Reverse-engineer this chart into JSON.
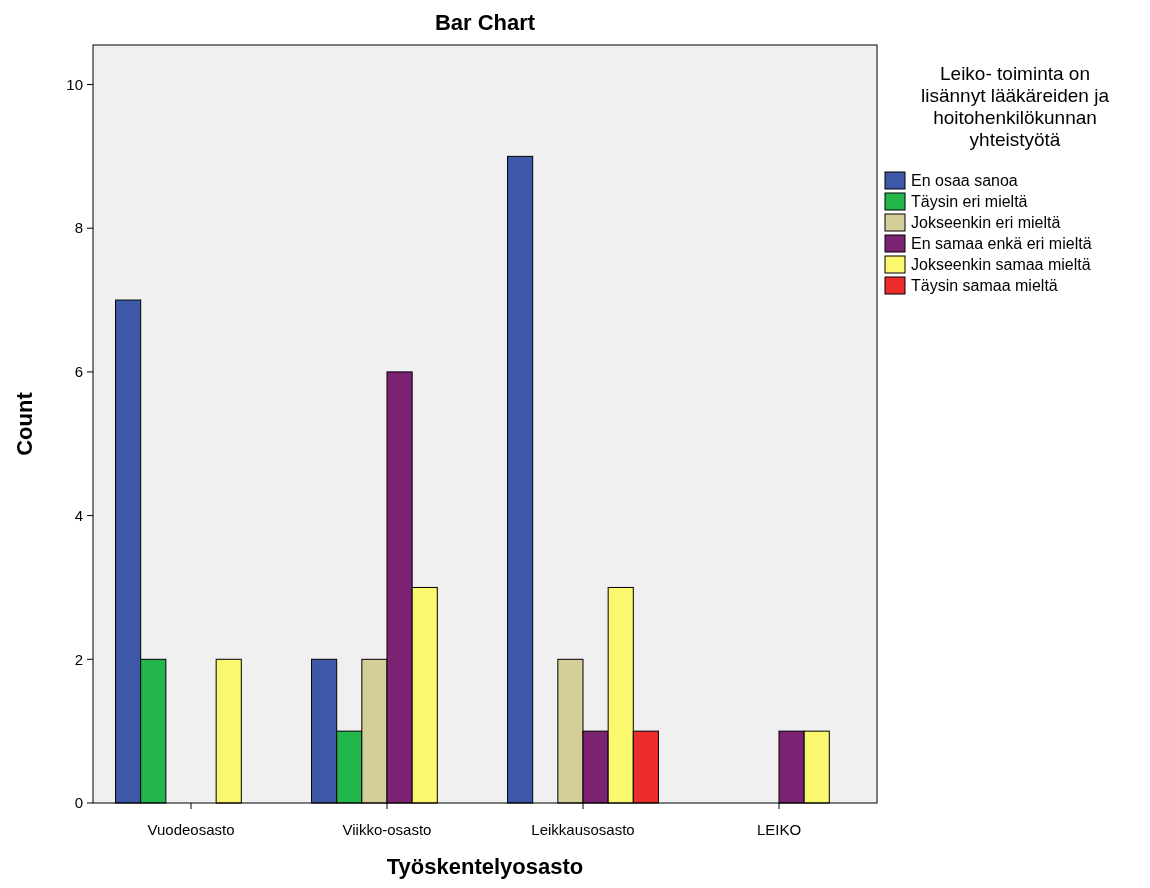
{
  "chart_data": {
    "type": "bar",
    "title": "Bar Chart",
    "xlabel": "Työskentelyosasto",
    "ylabel": "Count",
    "legend_title": "Leiko- toiminta on lisännyt lääkäreiden ja hoitohenkilökunnan yhteistyötä",
    "categories": [
      "Vuodeosasto",
      "Viikko-osasto",
      "Leikkausosasto",
      "LEIKO"
    ],
    "series": [
      {
        "name": "En osaa sanoa",
        "color": "#3d57a9",
        "values": [
          7,
          2,
          9,
          null
        ]
      },
      {
        "name": "Täysin eri mieltä",
        "color": "#23b74b",
        "values": [
          2,
          1,
          null,
          null
        ]
      },
      {
        "name": "Jokseenkin eri mieltä",
        "color": "#d4cf98",
        "values": [
          null,
          2,
          2,
          null
        ]
      },
      {
        "name": "En samaa enkä eri mieltä",
        "color": "#7b2372",
        "values": [
          null,
          6,
          1,
          1
        ]
      },
      {
        "name": "Jokseenkin samaa mieltä",
        "color": "#fbf86f",
        "values": [
          2,
          3,
          3,
          1
        ]
      },
      {
        "name": "Täysin samaa mieltä",
        "color": "#ec2d2b",
        "values": [
          null,
          null,
          1,
          null
        ]
      }
    ],
    "ylim": [
      0,
      10.55
    ],
    "yticks": [
      0,
      2,
      4,
      6,
      8,
      10
    ],
    "grid": false,
    "legend": "right"
  }
}
